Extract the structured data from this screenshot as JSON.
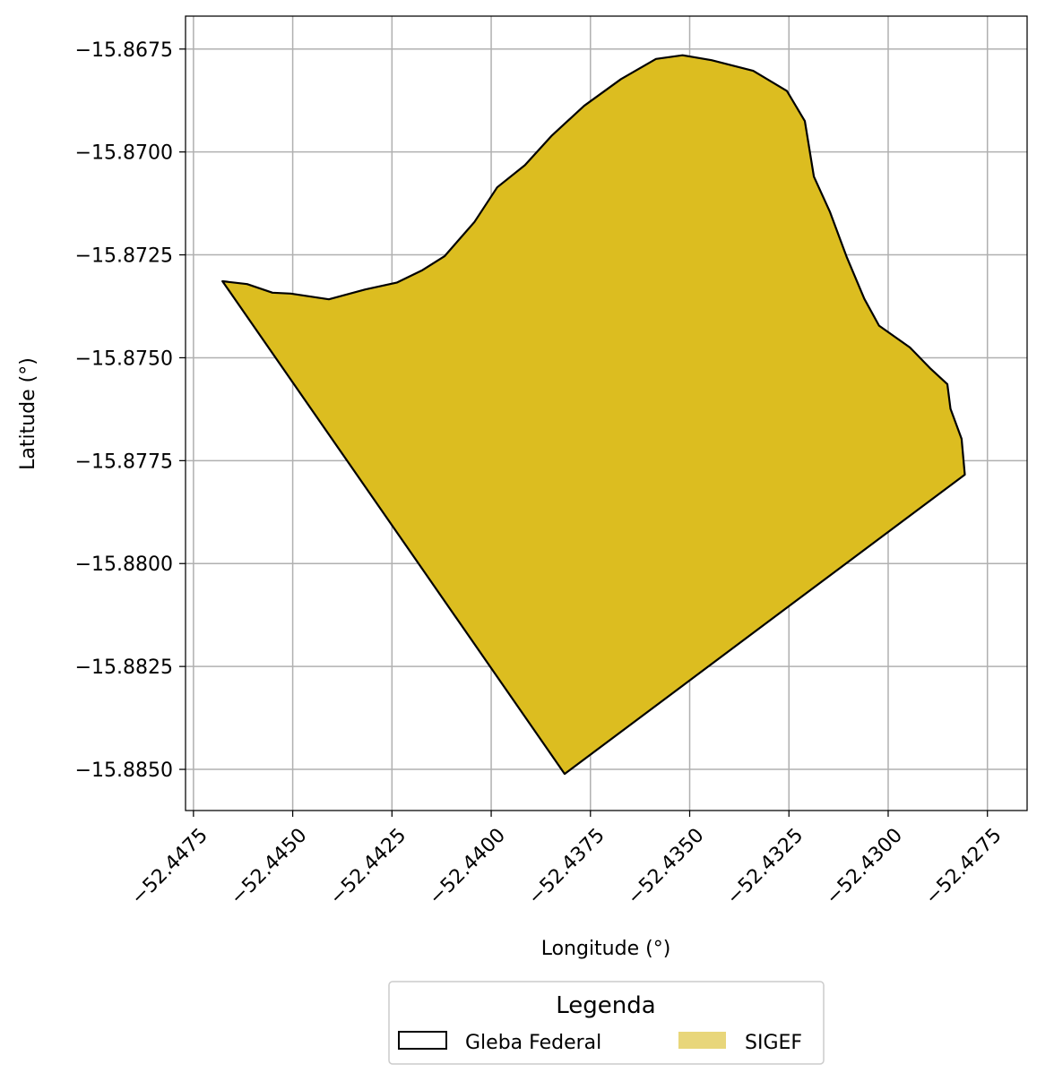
{
  "chart_data": {
    "type": "map",
    "xlabel": "Longitude (°)",
    "ylabel": "Latitude (°)",
    "xlim": [
      -52.4477,
      -52.4265
    ],
    "ylim": [
      -15.886,
      -15.8667
    ],
    "grid": true,
    "x_ticks": [
      -52.4475,
      -52.445,
      -52.4425,
      -52.44,
      -52.4375,
      -52.435,
      -52.4325,
      -52.43,
      -52.4275
    ],
    "x_tick_labels": [
      "−52.4475",
      "−52.4450",
      "−52.4425",
      "−52.4400",
      "−52.4375",
      "−52.4350",
      "−52.4325",
      "−52.4300",
      "−52.4275"
    ],
    "y_ticks": [
      -15.8675,
      -15.87,
      -15.8725,
      -15.875,
      -15.8775,
      -15.88,
      -15.8825,
      -15.885
    ],
    "y_tick_labels": [
      "−15.8675",
      "−15.8700",
      "−15.8725",
      "−15.8750",
      "−15.8775",
      "−15.8800",
      "−15.8825",
      "−15.8850"
    ],
    "legend": {
      "title": "Legenda",
      "placement": "bottom-center",
      "entries": [
        {
          "label": "Gleba Federal",
          "style": "outline",
          "edge_color": "#000000"
        },
        {
          "label": "SIGEF",
          "style": "fill",
          "fill_color": "#e8d67a"
        }
      ]
    },
    "polygon": {
      "fill_color": "#dcbd20",
      "edge_color": "#000000",
      "points": [
        [
          -52.44677,
          -15.87314
        ],
        [
          -52.44615,
          -15.87321
        ],
        [
          -52.44551,
          -15.87342
        ],
        [
          -52.44505,
          -15.87344
        ],
        [
          -52.44409,
          -15.87358
        ],
        [
          -52.44317,
          -15.87334
        ],
        [
          -52.44237,
          -15.87317
        ],
        [
          -52.44173,
          -15.87287
        ],
        [
          -52.44117,
          -15.87253
        ],
        [
          -52.44042,
          -15.8717
        ],
        [
          -52.43985,
          -15.87086
        ],
        [
          -52.43915,
          -15.87032
        ],
        [
          -52.43847,
          -15.8696
        ],
        [
          -52.43766,
          -15.86888
        ],
        [
          -52.43673,
          -15.86823
        ],
        [
          -52.43585,
          -15.86774
        ],
        [
          -52.43518,
          -15.86765
        ],
        [
          -52.43445,
          -15.86777
        ],
        [
          -52.4334,
          -15.86803
        ],
        [
          -52.43255,
          -15.86852
        ],
        [
          -52.4321,
          -15.86925
        ],
        [
          -52.43187,
          -15.8706
        ],
        [
          -52.43147,
          -15.87145
        ],
        [
          -52.43105,
          -15.87254
        ],
        [
          -52.4306,
          -15.87357
        ],
        [
          -52.43023,
          -15.87422
        ],
        [
          -52.42945,
          -15.87475
        ],
        [
          -52.42895,
          -15.87525
        ],
        [
          -52.42851,
          -15.87564
        ],
        [
          -52.42843,
          -15.87624
        ],
        [
          -52.42815,
          -15.87697
        ],
        [
          -52.42807,
          -15.87784
        ],
        [
          -52.43815,
          -15.88511
        ]
      ]
    }
  }
}
